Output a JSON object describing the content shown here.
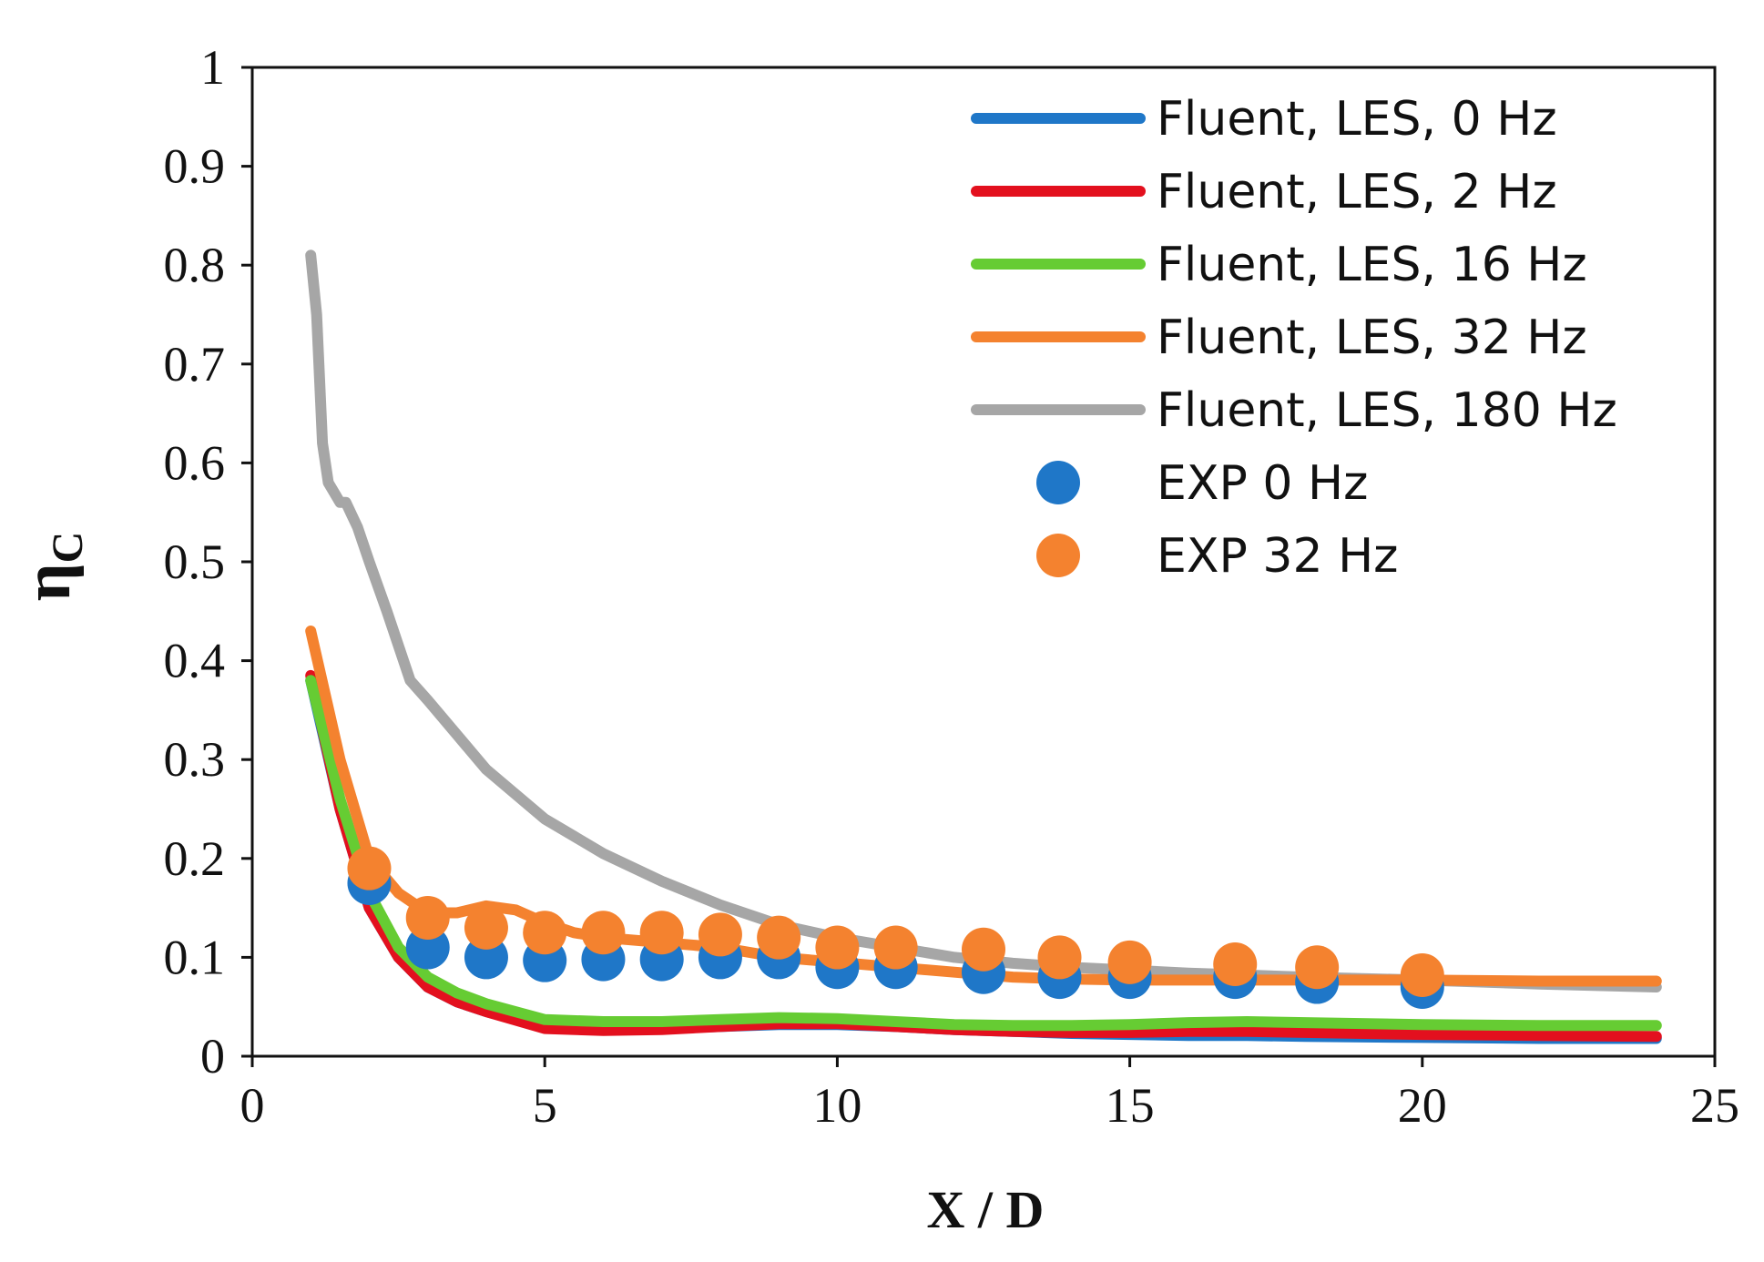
{
  "chart_data": {
    "type": "line",
    "xlabel": "X / D",
    "ylabel_symbol": "η",
    "ylabel_subscript": "C",
    "xlim": [
      0,
      25
    ],
    "ylim": [
      0,
      1
    ],
    "xticks": [
      0,
      5,
      10,
      15,
      20,
      25
    ],
    "yticks": [
      0,
      0.1,
      0.2,
      0.3,
      0.4,
      0.5,
      0.6,
      0.7,
      0.8,
      0.9,
      1
    ],
    "x_tick_labels": [
      "0",
      "5",
      "10",
      "15",
      "20",
      "25"
    ],
    "y_tick_labels": [
      "0",
      "0.1",
      "0.2",
      "0.3",
      "0.4",
      "0.5",
      "0.6",
      "0.7",
      "0.8",
      "0.9",
      "1"
    ],
    "grid": false,
    "legend_position": "top-right",
    "series": [
      {
        "name": "Fluent, LES, 0 Hz",
        "kind": "line",
        "color": "#1f77c8",
        "x": [
          1,
          1.5,
          2,
          2.5,
          3,
          3.5,
          4,
          5,
          6,
          7,
          8,
          9,
          10,
          11,
          12,
          13,
          14,
          15,
          16,
          17,
          18,
          20,
          22,
          24
        ],
        "y": [
          0.38,
          0.25,
          0.15,
          0.1,
          0.07,
          0.055,
          0.045,
          0.03,
          0.027,
          0.028,
          0.03,
          0.032,
          0.032,
          0.03,
          0.027,
          0.025,
          0.023,
          0.022,
          0.021,
          0.021,
          0.02,
          0.019,
          0.018,
          0.018
        ]
      },
      {
        "name": "Fluent, LES, 2 Hz",
        "kind": "line",
        "color": "#e3101e",
        "x": [
          1,
          1.5,
          2,
          2.5,
          3,
          3.5,
          4,
          5,
          6,
          7,
          8,
          9,
          10,
          11,
          12,
          13,
          14,
          15,
          16,
          17,
          18,
          20,
          22,
          24
        ],
        "y": [
          0.385,
          0.25,
          0.15,
          0.1,
          0.07,
          0.055,
          0.045,
          0.028,
          0.026,
          0.027,
          0.03,
          0.033,
          0.033,
          0.03,
          0.027,
          0.025,
          0.024,
          0.024,
          0.025,
          0.025,
          0.024,
          0.022,
          0.021,
          0.02
        ]
      },
      {
        "name": "Fluent, LES, 16 Hz",
        "kind": "line",
        "color": "#66cc33",
        "x": [
          1,
          1.5,
          2,
          2.5,
          3,
          3.5,
          4,
          5,
          6,
          7,
          8,
          9,
          10,
          11,
          12,
          13,
          14,
          15,
          16,
          17,
          18,
          20,
          22,
          24
        ],
        "y": [
          0.38,
          0.26,
          0.165,
          0.11,
          0.08,
          0.064,
          0.053,
          0.037,
          0.035,
          0.035,
          0.037,
          0.039,
          0.038,
          0.035,
          0.032,
          0.031,
          0.031,
          0.032,
          0.034,
          0.035,
          0.034,
          0.032,
          0.031,
          0.031
        ]
      },
      {
        "name": "Fluent, LES, 32 Hz",
        "kind": "line",
        "color": "#f4822f",
        "x": [
          1,
          1.5,
          2,
          2.5,
          3,
          3.5,
          4,
          4.5,
          5,
          5.5,
          6,
          7,
          8,
          9,
          10,
          11,
          12,
          13,
          14,
          15,
          16,
          17,
          18,
          20,
          22,
          24
        ],
        "y": [
          0.43,
          0.3,
          0.2,
          0.165,
          0.145,
          0.145,
          0.152,
          0.148,
          0.135,
          0.125,
          0.12,
          0.115,
          0.11,
          0.1,
          0.095,
          0.09,
          0.085,
          0.08,
          0.078,
          0.077,
          0.077,
          0.077,
          0.077,
          0.077,
          0.076,
          0.076
        ]
      },
      {
        "name": "Fluent, LES, 180 Hz",
        "kind": "line",
        "color": "#a6a6a6",
        "x": [
          1,
          1.1,
          1.2,
          1.3,
          1.5,
          1.6,
          1.8,
          2,
          2.3,
          2.7,
          3,
          3.5,
          4,
          5,
          6,
          7,
          8,
          9,
          10,
          11,
          12,
          13,
          14,
          15,
          16,
          17,
          18,
          20,
          22,
          24
        ],
        "y": [
          0.81,
          0.75,
          0.62,
          0.58,
          0.56,
          0.56,
          0.535,
          0.5,
          0.45,
          0.38,
          0.36,
          0.325,
          0.29,
          0.24,
          0.205,
          0.177,
          0.153,
          0.133,
          0.12,
          0.11,
          0.1,
          0.094,
          0.09,
          0.087,
          0.084,
          0.082,
          0.08,
          0.077,
          0.073,
          0.07
        ]
      },
      {
        "name": "EXP 0 Hz",
        "kind": "scatter",
        "color": "#1f77c8",
        "x": [
          2,
          3,
          4,
          5,
          6,
          7,
          8,
          9,
          10,
          11,
          12.5,
          13.8,
          15,
          16.8,
          18.2,
          20
        ],
        "y": [
          0.175,
          0.11,
          0.1,
          0.097,
          0.098,
          0.098,
          0.1,
          0.1,
          0.09,
          0.09,
          0.085,
          0.08,
          0.08,
          0.08,
          0.075,
          0.07
        ]
      },
      {
        "name": "EXP 32 Hz",
        "kind": "scatter",
        "color": "#f4822f",
        "x": [
          2,
          3,
          4,
          5,
          6,
          7,
          8,
          9,
          10,
          11,
          12.5,
          13.8,
          15,
          16.8,
          18.2,
          20
        ],
        "y": [
          0.19,
          0.14,
          0.13,
          0.125,
          0.125,
          0.125,
          0.123,
          0.12,
          0.11,
          0.11,
          0.108,
          0.1,
          0.095,
          0.093,
          0.09,
          0.082
        ]
      }
    ]
  }
}
